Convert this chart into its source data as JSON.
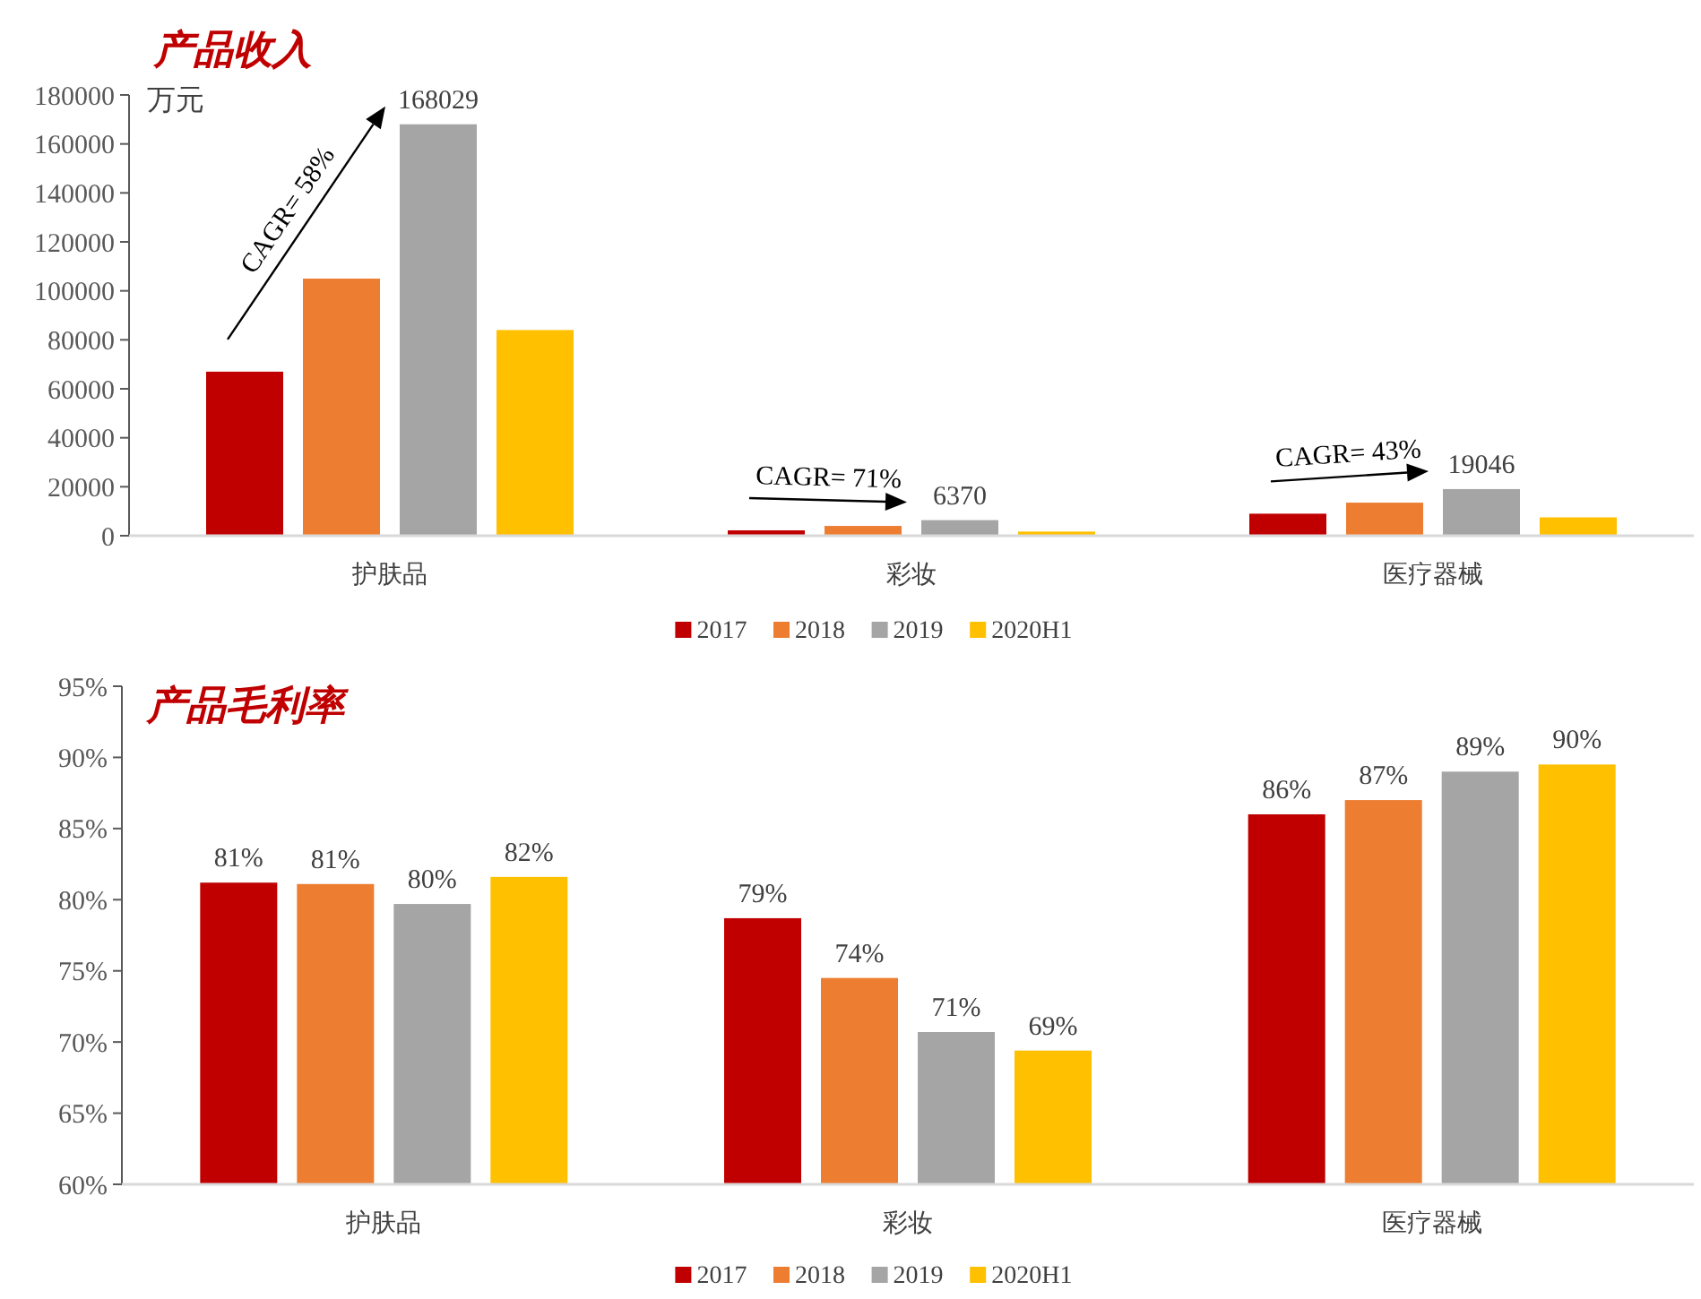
{
  "chart_data": [
    {
      "type": "bar",
      "title": "产品收入",
      "ylabel": "万元",
      "categories": [
        "护肤品",
        "彩妆",
        "医疗器械"
      ],
      "series": [
        {
          "name": "2017",
          "color": "#c00000",
          "values": [
            67000,
            2200,
            9000
          ]
        },
        {
          "name": "2018",
          "color": "#ed7d31",
          "values": [
            105000,
            4000,
            13500
          ]
        },
        {
          "name": "2019",
          "color": "#a5a5a5",
          "values": [
            168029,
            6370,
            19046
          ],
          "value_labels": [
            "168029",
            "6370",
            "19046"
          ]
        },
        {
          "name": "2020H1",
          "color": "#ffc000",
          "values": [
            84000,
            1700,
            7500
          ]
        }
      ],
      "ylim": [
        0,
        180000
      ],
      "yticks": [
        0,
        20000,
        40000,
        60000,
        80000,
        100000,
        120000,
        140000,
        160000,
        180000
      ],
      "grid": false,
      "legend": "bottom",
      "annotations": [
        "CAGR= 58%",
        "CAGR= 71%",
        "CAGR= 43%"
      ]
    },
    {
      "type": "bar",
      "title": "产品毛利率",
      "categories": [
        "护肤品",
        "彩妆",
        "医疗器械"
      ],
      "series": [
        {
          "name": "2017",
          "color": "#c00000",
          "values": [
            81.2,
            78.7,
            86
          ],
          "value_labels": [
            "81%",
            "79%",
            "86%"
          ]
        },
        {
          "name": "2018",
          "color": "#ed7d31",
          "values": [
            81.1,
            74.5,
            87
          ],
          "value_labels": [
            "81%",
            "74%",
            "87%"
          ]
        },
        {
          "name": "2019",
          "color": "#a5a5a5",
          "values": [
            79.7,
            70.7,
            89
          ],
          "value_labels": [
            "80%",
            "71%",
            "89%"
          ]
        },
        {
          "name": "2020H1",
          "color": "#ffc000",
          "values": [
            81.6,
            69.4,
            89.5
          ],
          "value_labels": [
            "82%",
            "69%",
            "90%"
          ]
        }
      ],
      "ylim": [
        60,
        95
      ],
      "yticks": [
        {
          "value": 60,
          "label": "60%"
        },
        {
          "value": 65,
          "label": "65%"
        },
        {
          "value": 70,
          "label": "70%"
        },
        {
          "value": 75,
          "label": "75%"
        },
        {
          "value": 80,
          "label": "80%"
        },
        {
          "value": 85,
          "label": "85%"
        },
        {
          "value": 90,
          "label": "90%"
        },
        {
          "value": 95,
          "label": "95%"
        }
      ],
      "grid": false,
      "legend": "bottom"
    }
  ]
}
